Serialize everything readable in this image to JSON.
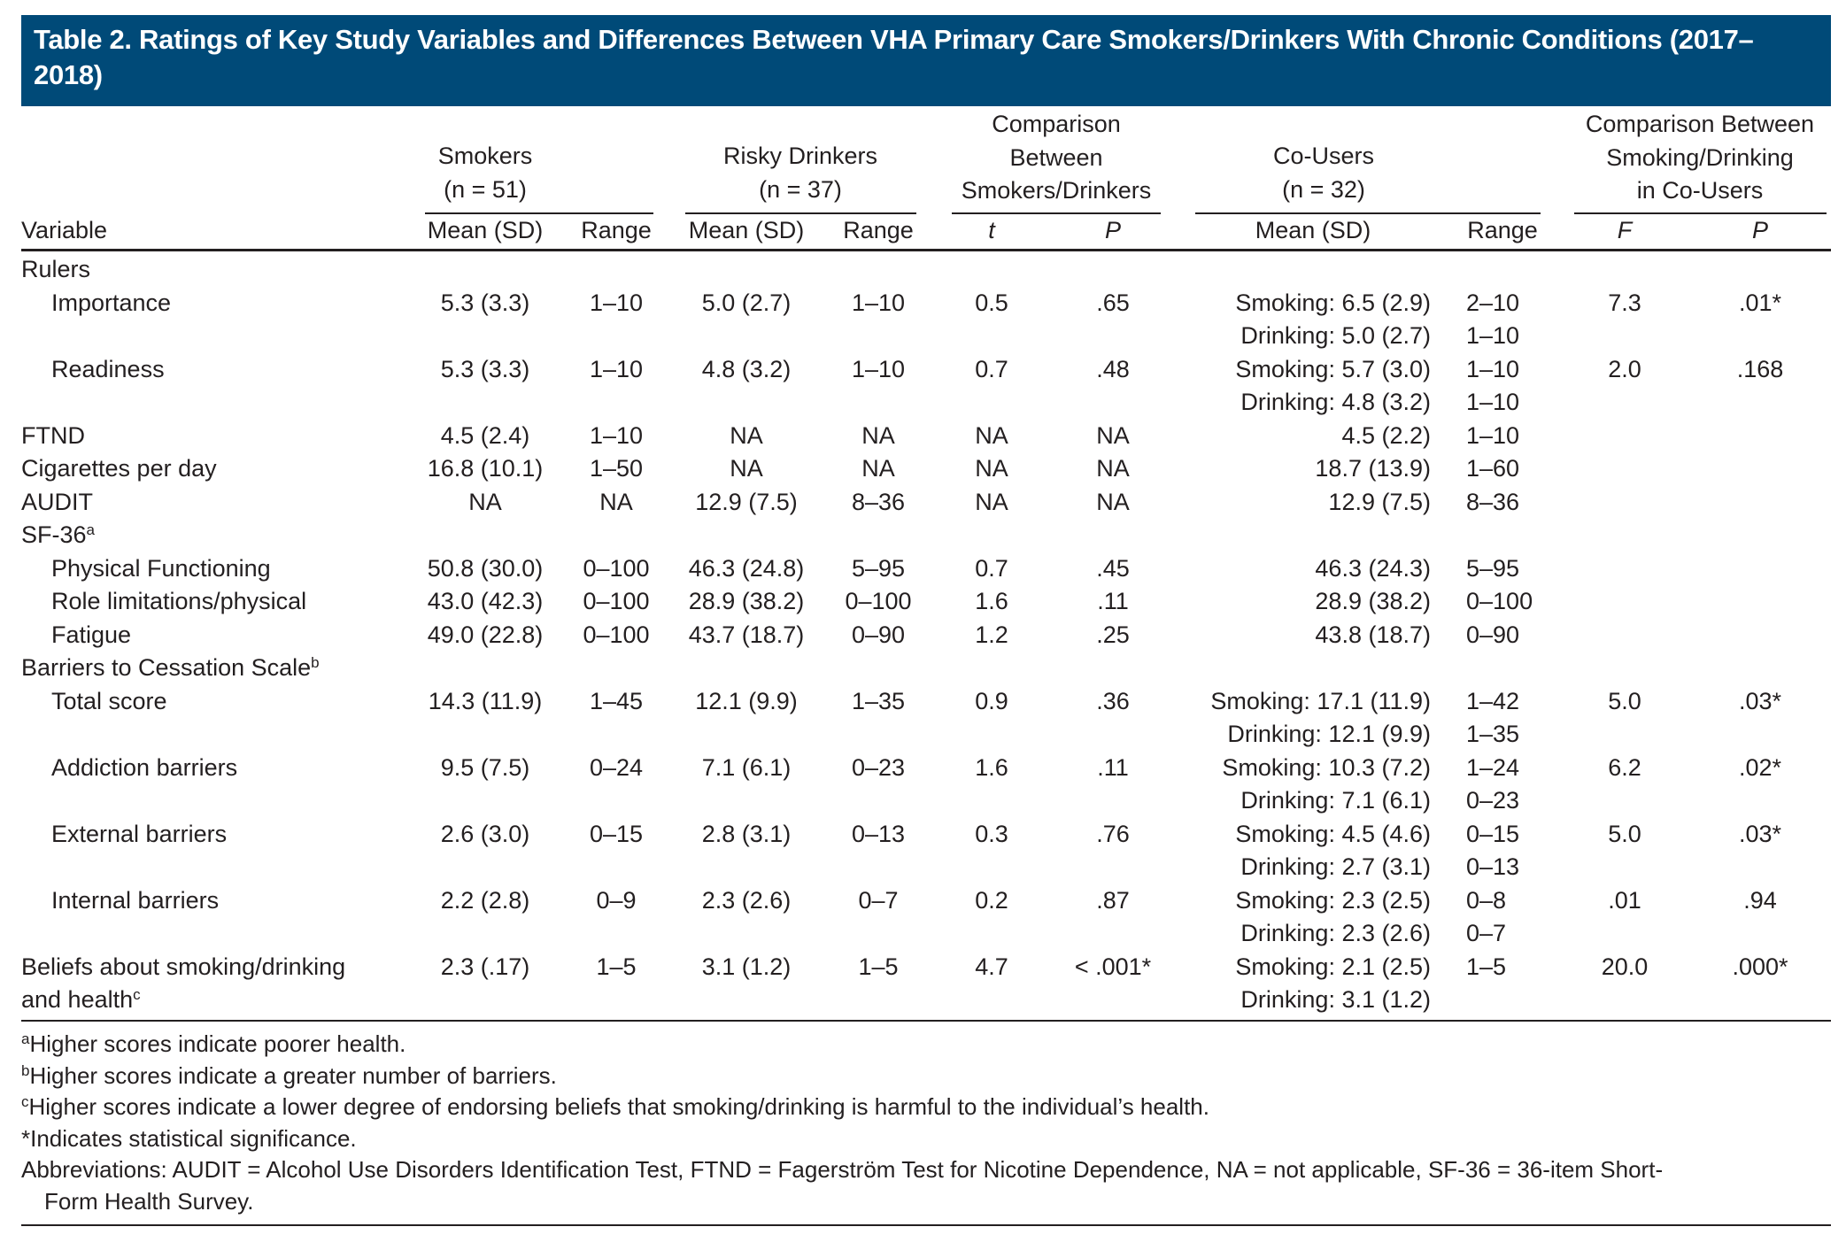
{
  "title": "Table 2. Ratings of Key Study Variables and Differences Between VHA Primary Care Smokers/Drinkers With Chronic Conditions (2017–2018)",
  "header_color": "#004a78",
  "headers": {
    "smokers": [
      "Smokers",
      "(n = 51)"
    ],
    "risky_drinkers": [
      "Risky Drinkers",
      "(n = 37)"
    ],
    "comparison_sd": [
      "Comparison",
      "Between",
      "Smokers/Drinkers"
    ],
    "co_users": [
      "Co-Users",
      "(n = 32)"
    ],
    "comparison_co": [
      "Comparison Between",
      "Smoking/Drinking",
      "in Co-Users"
    ],
    "variable": "Variable",
    "mean_sd": "Mean (SD)",
    "range": "Range",
    "t": "t",
    "p": "P",
    "f": "F"
  },
  "rows": [
    {
      "variable": [
        "Rulers"
      ],
      "indent": false
    },
    {
      "variable": [
        "Importance"
      ],
      "indent": true,
      "sm_mean": "5.3 (3.3)",
      "sm_range": "1–10",
      "rd_mean": "5.0 (2.7)",
      "rd_range": "1–10",
      "t": "0.5",
      "p": ".65",
      "co_mean": [
        "Smoking: 6.5 (2.9)",
        "Drinking: 5.0 (2.7)"
      ],
      "co_range": [
        "2–10",
        "1–10"
      ],
      "F": "7.3",
      "P": ".01*"
    },
    {
      "variable": [
        "Readiness"
      ],
      "indent": true,
      "sm_mean": "5.3 (3.3)",
      "sm_range": "1–10",
      "rd_mean": "4.8 (3.2)",
      "rd_range": "1–10",
      "t": "0.7",
      "p": ".48",
      "co_mean": [
        "Smoking: 5.7 (3.0)",
        "Drinking: 4.8 (3.2)"
      ],
      "co_range": [
        "1–10",
        "1–10"
      ],
      "F": "2.0",
      "P": ".168"
    },
    {
      "variable": [
        "FTND"
      ],
      "indent": false,
      "sm_mean": "4.5 (2.4)",
      "sm_range": "1–10",
      "rd_mean": "NA",
      "rd_range": "NA",
      "t": "NA",
      "p": "NA",
      "co_mean": [
        "4.5 (2.2)"
      ],
      "co_range": [
        "1–10"
      ]
    },
    {
      "variable": [
        "Cigarettes per day"
      ],
      "indent": false,
      "sm_mean": "16.8 (10.1)",
      "sm_range": "1–50",
      "rd_mean": "NA",
      "rd_range": "NA",
      "t": "NA",
      "p": "NA",
      "co_mean": [
        "18.7 (13.9)"
      ],
      "co_range": [
        "1–60"
      ]
    },
    {
      "variable": [
        "AUDIT"
      ],
      "indent": false,
      "sm_mean": "NA",
      "sm_range": "NA",
      "rd_mean": "12.9 (7.5)",
      "rd_range": "8–36",
      "t": "NA",
      "p": "NA",
      "co_mean": [
        "12.9 (7.5)"
      ],
      "co_range": [
        "8–36"
      ]
    },
    {
      "variable": [
        "SF-36"
      ],
      "sup": "a",
      "indent": false
    },
    {
      "variable": [
        "Physical Functioning"
      ],
      "indent": true,
      "sm_mean": "50.8 (30.0)",
      "sm_range": "0–100",
      "rd_mean": "46.3 (24.8)",
      "rd_range": "5–95",
      "t": "0.7",
      "p": ".45",
      "co_mean": [
        "46.3 (24.3)"
      ],
      "co_range": [
        "5–95"
      ]
    },
    {
      "variable": [
        "Role limitations/physical"
      ],
      "indent": true,
      "sm_mean": "43.0 (42.3)",
      "sm_range": "0–100",
      "rd_mean": "28.9 (38.2)",
      "rd_range": "0–100",
      "t": "1.6",
      "p": ".11",
      "co_mean": [
        "28.9 (38.2)"
      ],
      "co_range": [
        "0–100"
      ]
    },
    {
      "variable": [
        "Fatigue"
      ],
      "indent": true,
      "sm_mean": "49.0 (22.8)",
      "sm_range": "0–100",
      "rd_mean": "43.7 (18.7)",
      "rd_range": "0–90",
      "t": "1.2",
      "p": ".25",
      "co_mean": [
        "43.8 (18.7)"
      ],
      "co_range": [
        "0–90"
      ]
    },
    {
      "variable": [
        "Barriers to Cessation Scale"
      ],
      "sup": "b",
      "indent": false
    },
    {
      "variable": [
        "Total score"
      ],
      "indent": true,
      "sm_mean": "14.3 (11.9)",
      "sm_range": "1–45",
      "rd_mean": "12.1 (9.9)",
      "rd_range": "1–35",
      "t": "0.9",
      "p": ".36",
      "co_mean": [
        "Smoking: 17.1 (11.9)",
        "Drinking: 12.1 (9.9)"
      ],
      "co_range": [
        "1–42",
        "1–35"
      ],
      "F": "5.0",
      "P": ".03*"
    },
    {
      "variable": [
        "Addiction barriers"
      ],
      "indent": true,
      "sm_mean": "9.5 (7.5)",
      "sm_range": "0–24",
      "rd_mean": "7.1 (6.1)",
      "rd_range": "0–23",
      "t": "1.6",
      "p": ".11",
      "co_mean": [
        "Smoking: 10.3 (7.2)",
        "Drinking: 7.1 (6.1)"
      ],
      "co_range": [
        "1–24",
        "0–23"
      ],
      "F": "6.2",
      "P": ".02*"
    },
    {
      "variable": [
        "External barriers"
      ],
      "indent": true,
      "sm_mean": "2.6 (3.0)",
      "sm_range": "0–15",
      "rd_mean": "2.8 (3.1)",
      "rd_range": "0–13",
      "t": "0.3",
      "p": ".76",
      "co_mean": [
        "Smoking: 4.5 (4.6)",
        "Drinking: 2.7 (3.1)"
      ],
      "co_range": [
        "0–15",
        "0–13"
      ],
      "F": "5.0",
      "P": ".03*"
    },
    {
      "variable": [
        "Internal barriers"
      ],
      "indent": true,
      "sm_mean": "2.2 (2.8)",
      "sm_range": "0–9",
      "rd_mean": "2.3 (2.6)",
      "rd_range": "0–7",
      "t": "0.2",
      "p": ".87",
      "co_mean": [
        "Smoking: 2.3 (2.5)",
        "Drinking: 2.3 (2.6)"
      ],
      "co_range": [
        "0–8",
        "0–7"
      ],
      "F": ".01",
      "P": ".94"
    },
    {
      "variable": [
        "Beliefs about smoking/drinking",
        "and health"
      ],
      "sup": "c",
      "indent": false,
      "sm_mean": "2.3 (.17)",
      "sm_range": "1–5",
      "rd_mean": "3.1 (1.2)",
      "rd_range": "1–5",
      "t": "4.7",
      "p": "< .001*",
      "co_mean": [
        "Smoking: 2.1 (2.5)",
        "Drinking: 3.1 (1.2)"
      ],
      "co_range": [
        "1–5"
      ],
      "F": "20.0",
      "P": ".000*"
    }
  ],
  "footnotes": [
    {
      "sup": "a",
      "text": "Higher scores indicate poorer health."
    },
    {
      "sup": "b",
      "text": "Higher scores indicate a greater number of barriers."
    },
    {
      "sup": "c",
      "text": "Higher scores indicate a lower degree of endorsing beliefs that smoking/drinking is harmful to the individual’s health."
    },
    {
      "sup": "",
      "text": "*Indicates statistical significance."
    },
    {
      "sup": "",
      "text": "Abbreviations: AUDIT = Alcohol Use Disorders Identification Test, FTND = Fagerström Test for Nicotine Dependence, NA = not applicable, SF-36 = 36-item Short-"
    },
    {
      "sup": "",
      "text": "Form Health Survey.",
      "indent": true
    }
  ]
}
